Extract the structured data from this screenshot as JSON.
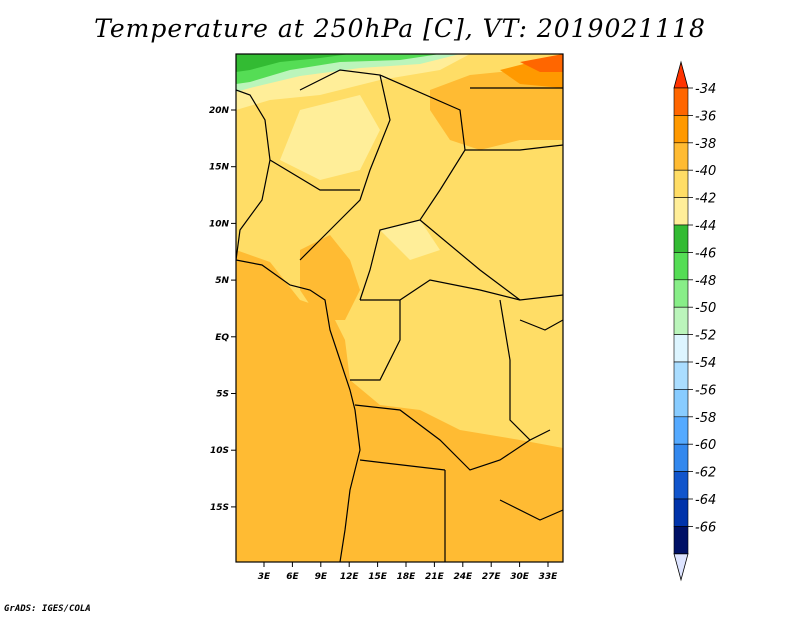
{
  "title": "Temperature at 250hPa [C], VT: 2019021118",
  "credit": "GrADS: IGES/COLA",
  "map": {
    "lon_labels": [
      "3E",
      "6E",
      "9E",
      "12E",
      "15E",
      "18E",
      "21E",
      "24E",
      "27E",
      "30E",
      "33E"
    ],
    "lat_labels": [
      "20N",
      "15N",
      "10N",
      "5N",
      "EQ",
      "5S",
      "10S",
      "15S"
    ]
  },
  "colorbar": {
    "labels": [
      "-34",
      "-36",
      "-38",
      "-40",
      "-42",
      "-44",
      "-46",
      "-48",
      "-50",
      "-52",
      "-54",
      "-56",
      "-58",
      "-60",
      "-62",
      "-64",
      "-66"
    ],
    "colors": [
      "#ff3300",
      "#ff6600",
      "#ff9900",
      "#ffbb33",
      "#ffdd66",
      "#ffee99",
      "#33bb33",
      "#55dd55",
      "#88ee88",
      "#bbf5bb",
      "#ddf5ff",
      "#aaddff",
      "#88ccff",
      "#55aaff",
      "#3388ee",
      "#1155cc",
      "#0033aa",
      "#001166",
      "#dde4ff"
    ]
  }
}
